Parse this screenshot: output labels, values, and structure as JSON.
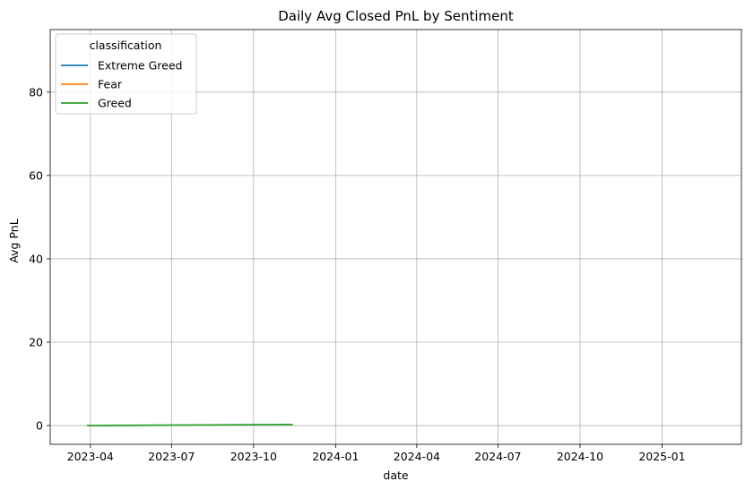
{
  "chart_data": {
    "type": "line",
    "title": "Daily Avg Closed PnL by Sentiment",
    "xlabel": "date",
    "ylabel": "Avg PnL",
    "x_ticks": [
      "2023-04",
      "2023-07",
      "2023-10",
      "2024-01",
      "2024-04",
      "2024-07",
      "2024-10",
      "2025-01"
    ],
    "y_ticks": [
      0,
      20,
      40,
      60,
      80
    ],
    "xlim": [
      "2023-02-15",
      "2025-03-31"
    ],
    "ylim": [
      -4.5,
      95
    ],
    "grid": true,
    "legend": {
      "title": "classification",
      "location": "upper left"
    },
    "series": [
      {
        "name": "Extreme Greed",
        "color": "#1f77b4",
        "x": [],
        "y": []
      },
      {
        "name": "Fear",
        "color": "#ff7f0e",
        "x": [],
        "y": []
      },
      {
        "name": "Greed",
        "color": "#2ca02c",
        "x": [
          "2023-03-28",
          "2023-11-14"
        ],
        "y": [
          0.0,
          0.25
        ]
      }
    ]
  }
}
